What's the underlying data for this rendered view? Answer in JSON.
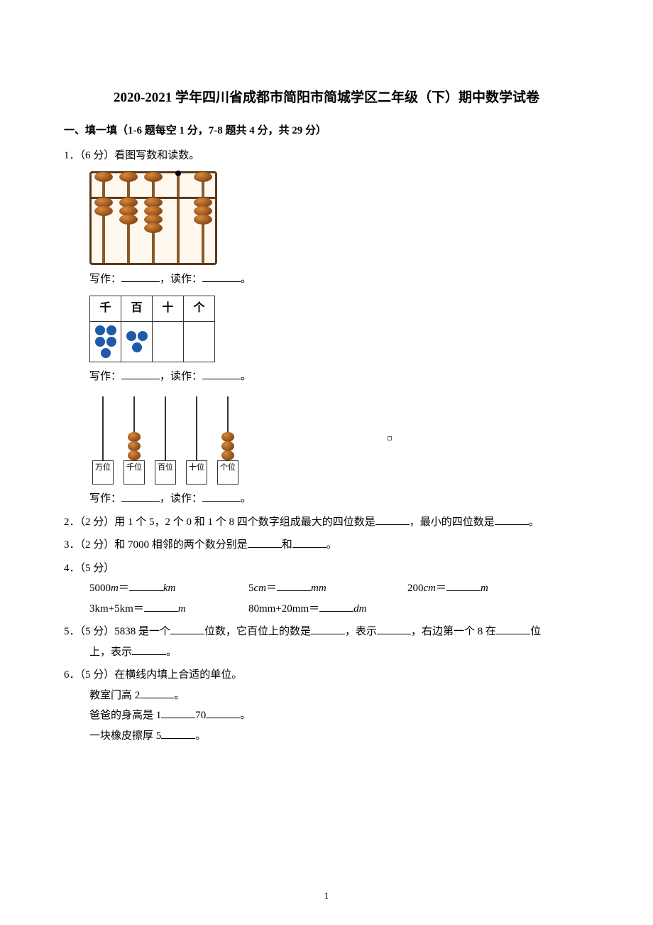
{
  "title": "2020-2021 学年四川省成都市简阳市简城学区二年级（下）期中数学试卷",
  "section1": {
    "heading": "一、填一填（1-6 题每空 1 分，7-8 题共 4 分，共 29 分）"
  },
  "q1": {
    "stem": "1．（6 分）看图写数和读数。",
    "write_label": "写作：",
    "read_label": "，读作：",
    "period": "。",
    "abacus": {
      "frame_color": "#5a3a1a",
      "bead_color_light": "#d98a3a",
      "bead_color_dark": "#8a4a1a",
      "rods": 5,
      "top_beads": [
        1,
        1,
        1,
        0,
        1
      ],
      "bottom_beads": [
        2,
        3,
        4,
        0,
        3
      ],
      "dot_col_index": 3
    },
    "pv_table": {
      "headers": [
        "千",
        "百",
        "十",
        "个"
      ],
      "dots": [
        5,
        3,
        0,
        0
      ],
      "dot_color": "#1e5aa8"
    },
    "counter": {
      "labels": [
        "万位",
        "千位",
        "百位",
        "十位",
        "个位"
      ],
      "beads": [
        0,
        3,
        0,
        0,
        3
      ]
    }
  },
  "q2": {
    "text_a": "2．（2 分）用 1 个 5，2 个 0 和 1 个 8 四个数字组成最大的四位数是",
    "text_b": "，最小的四位数是",
    "period": "。"
  },
  "q3": {
    "text_a": "3．（2 分）和 7000 相邻的两个数分别是",
    "text_and": "和",
    "period": "。"
  },
  "q4": {
    "stem": "4．（5 分）",
    "items": [
      {
        "lhs": "5000",
        "unit_a": "m",
        "eq": "＝",
        "unit_b": "km"
      },
      {
        "lhs": "5",
        "unit_a": "cm",
        "eq": "＝",
        "unit_b": "mm"
      },
      {
        "lhs": "200",
        "unit_a": "cm",
        "eq": "＝",
        "unit_b": "m"
      },
      {
        "lhs": "3km+5km",
        "unit_a": "",
        "eq": "＝",
        "unit_b": "m"
      },
      {
        "lhs": "80mm+20mm",
        "unit_a": "",
        "eq": "＝",
        "unit_b": "dm"
      }
    ]
  },
  "q5": {
    "a": "5．（5 分）5838 是一个",
    "b": "位数，它百位上的数是",
    "c": "，表示",
    "d": "，右边第一个 8 在",
    "e": "位",
    "f": "上，表示",
    "period": "。"
  },
  "q6": {
    "stem": "6．（5 分）在横线内填上合适的单位。",
    "l1a": "教室门高 2",
    "period": "。",
    "l2a": "爸爸的身高是 1",
    "l2b": "70",
    "l3a": "一块橡皮擦厚 5"
  },
  "page_number": "1"
}
